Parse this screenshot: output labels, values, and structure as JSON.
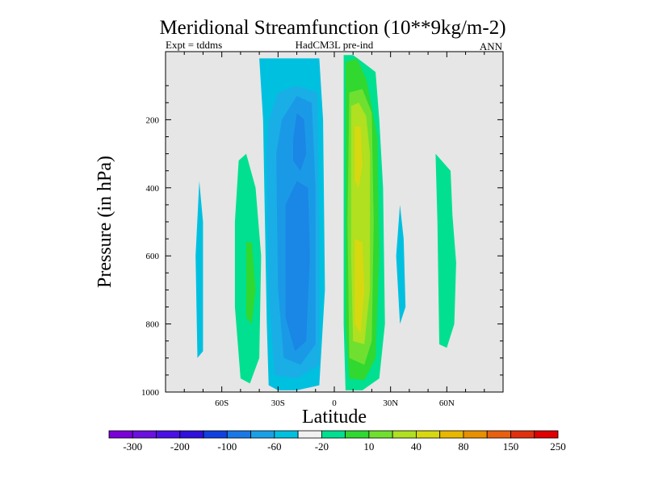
{
  "chart_data": {
    "type": "heatmap",
    "title": "Meridional Streamfunction (10**9kg/m-2)",
    "subtitle_left": "Expt = tddms",
    "subtitle_center": "HadCM3L pre-ind",
    "subtitle_right": "ANN",
    "xlabel": "Latitude",
    "ylabel": "Pressure (in hPa)",
    "xlim": [
      -90,
      90
    ],
    "ylim": [
      0,
      1000
    ],
    "y_reversed": true,
    "x_ticks": [
      {
        "value": -60,
        "label": "60S"
      },
      {
        "value": -30,
        "label": "30S"
      },
      {
        "value": 0,
        "label": "0"
      },
      {
        "value": 30,
        "label": "30N"
      },
      {
        "value": 60,
        "label": "60N"
      }
    ],
    "y_ticks": [
      {
        "value": 200,
        "label": "200"
      },
      {
        "value": 400,
        "label": "400"
      },
      {
        "value": 600,
        "label": "600"
      },
      {
        "value": 800,
        "label": "800"
      },
      {
        "value": 1000,
        "label": "1000"
      }
    ],
    "background_color": "#e6e6e6",
    "colorbar": {
      "colors": [
        "#7a00d8",
        "#6a10e0",
        "#4a10e6",
        "#3010dc",
        "#1040e0",
        "#1a78e6",
        "#1aa0e6",
        "#00c0e0",
        "#f0f0f0",
        "#00e090",
        "#30d830",
        "#70e030",
        "#b0e020",
        "#d8d810",
        "#e8b800",
        "#e89000",
        "#e86010",
        "#e03010",
        "#e00000"
      ],
      "labels": [
        "-300",
        "-200",
        "-100",
        "-60",
        "-20",
        "10",
        "40",
        "80",
        "150",
        "250"
      ]
    },
    "regions": [
      {
        "level": -20,
        "color": "#00c0e0",
        "points": [
          [
            -40,
            20
          ],
          [
            -38,
            200
          ],
          [
            -37,
            500
          ],
          [
            -36,
            800
          ],
          [
            -35,
            980
          ],
          [
            -30,
            995
          ],
          [
            -20,
            995
          ],
          [
            -8,
            980
          ],
          [
            -5,
            700
          ],
          [
            -6,
            200
          ],
          [
            -8,
            20
          ]
        ]
      },
      {
        "level": -30,
        "color": "#1aaee6",
        "points": [
          [
            -36,
            300
          ],
          [
            -35,
            700
          ],
          [
            -32,
            950
          ],
          [
            -20,
            960
          ],
          [
            -8,
            920
          ],
          [
            -8,
            500
          ],
          [
            -9,
            120
          ],
          [
            -20,
            100
          ],
          [
            -30,
            120
          ],
          [
            -35,
            200
          ]
        ]
      },
      {
        "level": -40,
        "color": "#1a9ae6",
        "points": [
          [
            -31,
            300
          ],
          [
            -30,
            700
          ],
          [
            -27,
            900
          ],
          [
            -18,
            920
          ],
          [
            -10,
            860
          ],
          [
            -10,
            400
          ],
          [
            -12,
            150
          ],
          [
            -20,
            130
          ],
          [
            -28,
            200
          ]
        ]
      },
      {
        "level": -50,
        "color": "#1a86e6",
        "points": [
          [
            -26,
            450
          ],
          [
            -26,
            780
          ],
          [
            -21,
            880
          ],
          [
            -15,
            850
          ],
          [
            -13,
            600
          ],
          [
            -14,
            400
          ],
          [
            -20,
            380
          ]
        ]
      },
      {
        "level": -50,
        "color": "#1a86e6",
        "points": [
          [
            -22,
            260
          ],
          [
            -20,
            180
          ],
          [
            -16,
            200
          ],
          [
            -15,
            300
          ],
          [
            -18,
            350
          ],
          [
            -22,
            320
          ]
        ]
      },
      {
        "level": 10,
        "color": "#00e090",
        "points": [
          [
            5,
            10
          ],
          [
            5,
            400
          ],
          [
            5,
            800
          ],
          [
            6,
            995
          ],
          [
            15,
            995
          ],
          [
            24,
            960
          ],
          [
            27,
            800
          ],
          [
            26,
            400
          ],
          [
            24,
            200
          ],
          [
            22,
            60
          ],
          [
            15,
            30
          ],
          [
            10,
            10
          ]
        ]
      },
      {
        "level": 20,
        "color": "#30d830",
        "points": [
          [
            6,
            30
          ],
          [
            6,
            400
          ],
          [
            6,
            800
          ],
          [
            8,
            960
          ],
          [
            16,
            965
          ],
          [
            22,
            900
          ],
          [
            24,
            600
          ],
          [
            23,
            250
          ],
          [
            17,
            80
          ],
          [
            12,
            20
          ]
        ]
      },
      {
        "level": 30,
        "color": "#70e030",
        "points": [
          [
            8,
            120
          ],
          [
            7,
            500
          ],
          [
            8,
            900
          ],
          [
            16,
            920
          ],
          [
            20,
            850
          ],
          [
            21,
            500
          ],
          [
            20,
            180
          ],
          [
            15,
            110
          ]
        ]
      },
      {
        "level": 40,
        "color": "#b0e020",
        "points": [
          [
            9,
            160
          ],
          [
            9,
            600
          ],
          [
            10,
            850
          ],
          [
            16,
            860
          ],
          [
            19,
            700
          ],
          [
            19,
            300
          ],
          [
            17,
            190
          ],
          [
            13,
            150
          ]
        ]
      },
      {
        "level": 60,
        "color": "#d8d810",
        "points": [
          [
            11,
            220
          ],
          [
            11,
            380
          ],
          [
            13,
            400
          ],
          [
            15,
            330
          ],
          [
            14,
            220
          ]
        ]
      },
      {
        "level": 60,
        "color": "#d8d810",
        "points": [
          [
            11,
            550
          ],
          [
            11,
            800
          ],
          [
            14,
            830
          ],
          [
            16,
            700
          ],
          [
            15,
            560
          ]
        ]
      },
      {
        "level": 10,
        "color": "#00e090",
        "points": [
          [
            -51,
            320
          ],
          [
            -53,
            500
          ],
          [
            -53,
            750
          ],
          [
            -50,
            960
          ],
          [
            -45,
            975
          ],
          [
            -40,
            900
          ],
          [
            -39,
            600
          ],
          [
            -42,
            400
          ],
          [
            -47,
            300
          ]
        ]
      },
      {
        "level": 20,
        "color": "#30d830",
        "points": [
          [
            -47,
            560
          ],
          [
            -47,
            780
          ],
          [
            -44,
            800
          ],
          [
            -42,
            700
          ],
          [
            -44,
            560
          ]
        ]
      },
      {
        "level": -10,
        "color": "#00c0e0",
        "points": [
          [
            -72,
            380
          ],
          [
            -74,
            600
          ],
          [
            -73,
            900
          ],
          [
            -70,
            880
          ],
          [
            -70,
            500
          ]
        ]
      },
      {
        "level": -10,
        "color": "#00c0e0",
        "points": [
          [
            35,
            450
          ],
          [
            33,
            600
          ],
          [
            35,
            800
          ],
          [
            38,
            750
          ],
          [
            37,
            550
          ]
        ]
      },
      {
        "level": 10,
        "color": "#00e090",
        "points": [
          [
            54,
            300
          ],
          [
            55,
            500
          ],
          [
            56,
            860
          ],
          [
            60,
            870
          ],
          [
            64,
            800
          ],
          [
            65,
            620
          ],
          [
            63,
            480
          ],
          [
            62,
            350
          ]
        ]
      }
    ]
  }
}
